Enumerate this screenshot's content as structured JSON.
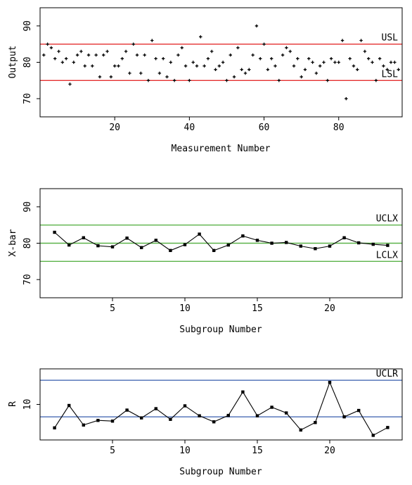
{
  "chart_data": [
    {
      "type": "scatter",
      "xlabel": "Measurement Number",
      "ylabel": "Output",
      "xlim": [
        0,
        97
      ],
      "ylim": [
        65,
        95
      ],
      "xticks": [
        20,
        40,
        60,
        80
      ],
      "yticks": [
        70,
        80,
        90
      ],
      "marker": "plus",
      "point_color": "#000000",
      "grid": false,
      "lines": [
        {
          "label": "USL",
          "value": 85,
          "color": "#e53030"
        },
        {
          "label": "LSL",
          "value": 75,
          "color": "#e53030"
        }
      ],
      "y": [
        82,
        85,
        84,
        81,
        83,
        80,
        81,
        74,
        80,
        82,
        83,
        79,
        82,
        79,
        82,
        76,
        82,
        83,
        76,
        79,
        79,
        81,
        83,
        77,
        85,
        82,
        77,
        82,
        75,
        86,
        81,
        77,
        81,
        76,
        80,
        75,
        82,
        84,
        79,
        75,
        80,
        79,
        87,
        79,
        81,
        83,
        78,
        79,
        80,
        75,
        82,
        76,
        84,
        78,
        77,
        78,
        82,
        90,
        81,
        85,
        78,
        81,
        79,
        75,
        82,
        84,
        83,
        79,
        81,
        76,
        78,
        81,
        80,
        77,
        79,
        80,
        75,
        81,
        80,
        80,
        86,
        70,
        81,
        79,
        78,
        86,
        83,
        81,
        80,
        75,
        81,
        79,
        78,
        80,
        80,
        78
      ]
    },
    {
      "type": "line",
      "xlabel": "Subgroup Number",
      "ylabel": "X-bar",
      "xlim": [
        0,
        25
      ],
      "ylim": [
        65,
        95
      ],
      "xticks": [
        5,
        10,
        15,
        20
      ],
      "yticks": [
        70,
        80,
        90
      ],
      "line_color": "#000000",
      "grid": false,
      "lines": [
        {
          "label": "UCLX",
          "value": 85,
          "color": "#5cb34a"
        },
        {
          "label": "",
          "value": 80,
          "color": "#5cb34a"
        },
        {
          "label": "LCLX",
          "value": 75,
          "color": "#5cb34a"
        }
      ],
      "x": [
        1,
        2,
        3,
        4,
        5,
        6,
        7,
        8,
        9,
        10,
        11,
        12,
        13,
        14,
        15,
        16,
        17,
        18,
        19,
        20,
        21,
        22,
        23,
        24
      ],
      "y": [
        83,
        79.5,
        81.5,
        79.3,
        79,
        81.4,
        78.8,
        80.8,
        78,
        79.6,
        82.5,
        78,
        79.5,
        82,
        80.8,
        80,
        80.2,
        79.2,
        78.5,
        79.2,
        81.5,
        80.1,
        79.7,
        79.4
      ]
    },
    {
      "type": "line",
      "xlabel": "Subgroup Number",
      "ylabel": "R",
      "xlim": [
        0,
        25
      ],
      "ylim": [
        0,
        20
      ],
      "xticks": [
        5,
        10,
        15,
        20
      ],
      "yticks": [
        10
      ],
      "line_color": "#000000",
      "grid": false,
      "lines": [
        {
          "label": "UCLR",
          "value": 16.8,
          "color": "#4a6bb5"
        },
        {
          "label": "",
          "value": 6.5,
          "color": "#4a6bb5"
        }
      ],
      "x": [
        1,
        2,
        3,
        4,
        5,
        6,
        7,
        8,
        9,
        10,
        11,
        12,
        13,
        14,
        15,
        16,
        17,
        18,
        19,
        20,
        21,
        22,
        23,
        24
      ],
      "y": [
        3.4,
        9.7,
        4.2,
        5.5,
        5.3,
        8.4,
        6.2,
        8.8,
        5.8,
        9.6,
        6.8,
        5.1,
        6.9,
        13.5,
        6.8,
        9.2,
        7.6,
        2.8,
        4.9,
        16.2,
        6.5,
        8.3,
        1.3,
        3.5
      ]
    }
  ]
}
